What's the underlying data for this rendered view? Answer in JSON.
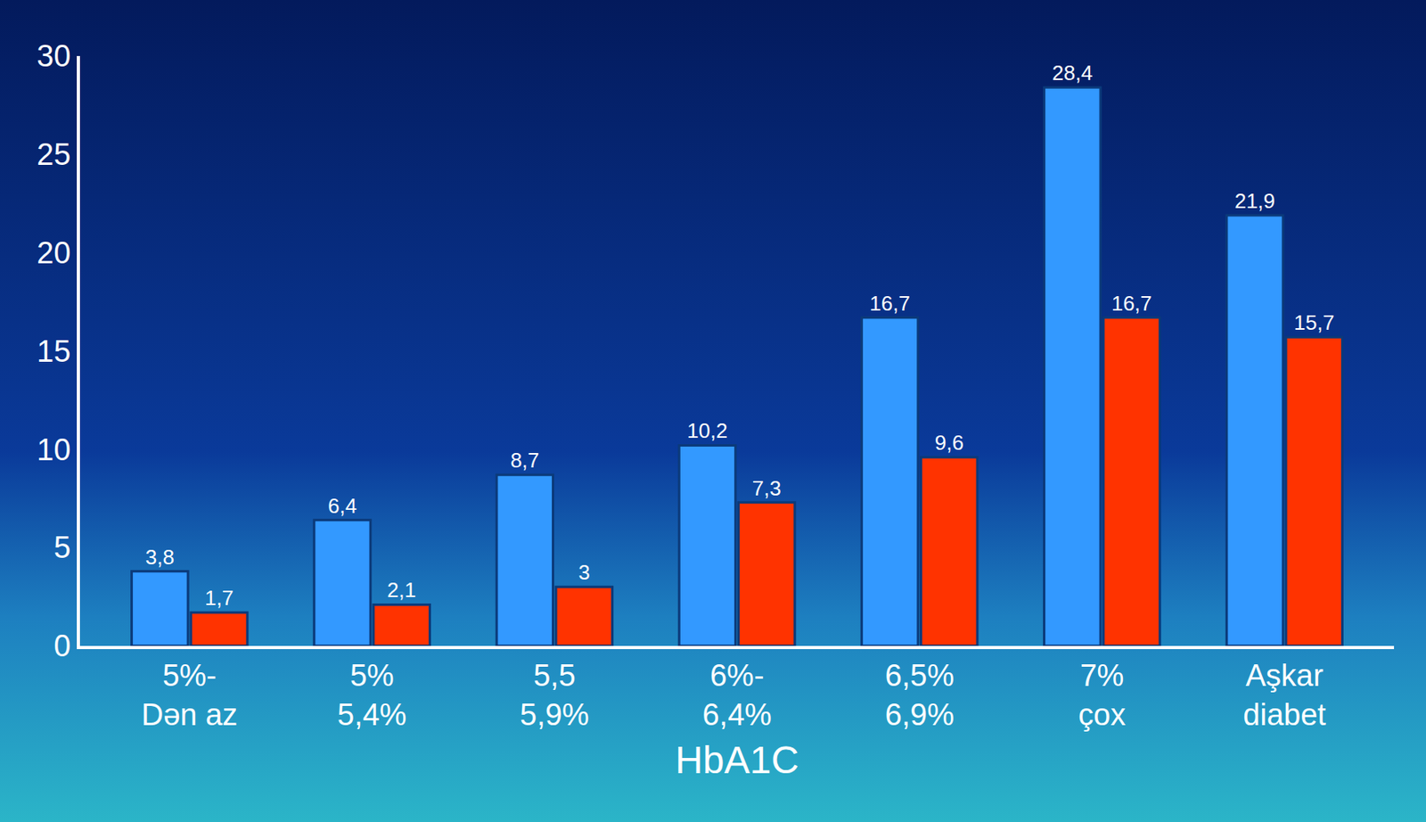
{
  "chart_data": {
    "type": "bar",
    "x_label": "HbA1C",
    "categories": [
      "5%-\nDən az",
      "5%\n5,4%",
      "5,5\n5,9%",
      "6%-\n6,4%",
      "6,5%\n6,9%",
      "7%\nçox",
      "Aşkar\ndiabet"
    ],
    "series": [
      {
        "color": "#3399ff",
        "values": [
          3.8,
          6.4,
          8.7,
          10.2,
          16.7,
          28.4,
          21.9
        ],
        "value_labels": [
          "3,8",
          "6,4",
          "8,7",
          "10,2",
          "16,7",
          "28,4",
          "21,9"
        ]
      },
      {
        "color": "#ff3300",
        "values": [
          1.7,
          2.1,
          3,
          7.3,
          9.6,
          16.7,
          15.7
        ],
        "value_labels": [
          "1,7",
          "2,1",
          "3",
          "7,3",
          "9,6",
          "16,7",
          "15,7"
        ]
      }
    ],
    "ylim": [
      0,
      30
    ],
    "yticks": [
      0,
      5,
      10,
      15,
      20,
      25,
      30
    ],
    "grid": false,
    "data_labels": true
  }
}
